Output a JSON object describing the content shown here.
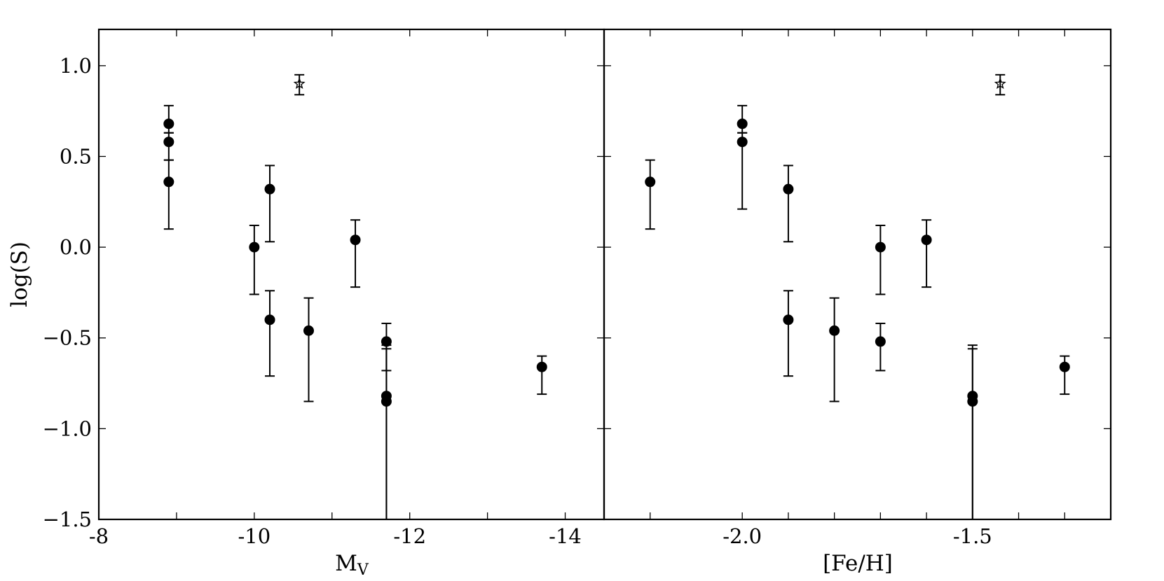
{
  "chart_data": [
    {
      "type": "scatter",
      "panel": "left",
      "xlabel": "M",
      "xlabel_sub": "V",
      "ylabel": "log(S)",
      "xlim": [
        -8,
        -14.5
      ],
      "ylim": [
        -1.5,
        1.2
      ],
      "xticks": [
        -8,
        -10,
        -12,
        -14
      ],
      "xtick_labels": [
        "-8",
        "-10",
        "-12",
        "-14"
      ],
      "xminor": [
        -9,
        -11,
        -13
      ],
      "yticks": [
        1.0,
        0.5,
        0.0,
        -0.5,
        -1.0,
        -1.5
      ],
      "ytick_labels": [
        "1.0",
        "0.5",
        "0.0",
        "−0.5",
        "−1.0",
        "−1.5"
      ],
      "points": [
        {
          "x": -8.9,
          "y": 0.68,
          "lo": 0.63,
          "hi": 0.78,
          "marker": "circle"
        },
        {
          "x": -8.9,
          "y": 0.58,
          "lo": 0.48,
          "hi": 0.63,
          "marker": "circle"
        },
        {
          "x": -8.9,
          "y": 0.36,
          "lo": 0.1,
          "hi": 0.48,
          "marker": "circle"
        },
        {
          "x": -10.0,
          "y": 0.0,
          "lo": -0.26,
          "hi": 0.12,
          "marker": "circle"
        },
        {
          "x": -10.2,
          "y": 0.32,
          "lo": 0.03,
          "hi": 0.45,
          "marker": "circle"
        },
        {
          "x": -10.2,
          "y": -0.4,
          "lo": -0.71,
          "hi": -0.24,
          "marker": "circle"
        },
        {
          "x": -10.7,
          "y": -0.46,
          "lo": -0.85,
          "hi": -0.28,
          "marker": "circle"
        },
        {
          "x": -11.3,
          "y": 0.04,
          "lo": -0.22,
          "hi": 0.15,
          "marker": "circle"
        },
        {
          "x": -11.7,
          "y": -0.52,
          "lo": -0.68,
          "hi": -0.42,
          "marker": "circle"
        },
        {
          "x": -11.7,
          "y": -0.82,
          "lo": -1.5,
          "hi": -0.56,
          "marker": "circle"
        },
        {
          "x": -11.7,
          "y": -0.85,
          "lo": -1.5,
          "hi": -0.54,
          "marker": "circle"
        },
        {
          "x": -13.7,
          "y": -0.66,
          "lo": -0.81,
          "hi": -0.6,
          "marker": "circle"
        },
        {
          "x": -10.58,
          "y": 0.9,
          "lo": 0.84,
          "hi": 0.95,
          "marker": "star"
        }
      ]
    },
    {
      "type": "scatter",
      "panel": "right",
      "xlabel": "[Fe/H]",
      "ylim": [
        -1.5,
        1.2
      ],
      "xlim": [
        -2.3,
        -1.2
      ],
      "xticks": [
        -2.0,
        -1.5
      ],
      "xtick_labels": [
        "-2.0",
        "-1.5"
      ],
      "xminor": [
        -2.2,
        -1.9,
        -1.8,
        -1.7,
        -1.6,
        -1.4,
        -1.3
      ],
      "yticks": [
        1.0,
        0.5,
        0.0,
        -0.5,
        -1.0
      ],
      "points": [
        {
          "x": -2.2,
          "y": 0.36,
          "lo": 0.1,
          "hi": 0.48,
          "marker": "circle"
        },
        {
          "x": -2.0,
          "y": 0.68,
          "lo": 0.63,
          "hi": 0.78,
          "marker": "circle"
        },
        {
          "x": -2.0,
          "y": 0.58,
          "lo": 0.21,
          "hi": 0.63,
          "marker": "circle"
        },
        {
          "x": -1.9,
          "y": 0.32,
          "lo": 0.03,
          "hi": 0.45,
          "marker": "circle"
        },
        {
          "x": -1.9,
          "y": -0.4,
          "lo": -0.71,
          "hi": -0.24,
          "marker": "circle"
        },
        {
          "x": -1.8,
          "y": -0.46,
          "lo": -0.85,
          "hi": -0.28,
          "marker": "circle"
        },
        {
          "x": -1.7,
          "y": 0.0,
          "lo": -0.26,
          "hi": 0.12,
          "marker": "circle"
        },
        {
          "x": -1.7,
          "y": -0.52,
          "lo": -0.68,
          "hi": -0.42,
          "marker": "circle"
        },
        {
          "x": -1.6,
          "y": 0.04,
          "lo": -0.22,
          "hi": 0.15,
          "marker": "circle"
        },
        {
          "x": -1.5,
          "y": -0.82,
          "lo": -1.5,
          "hi": -0.56,
          "marker": "circle"
        },
        {
          "x": -1.5,
          "y": -0.85,
          "lo": -1.5,
          "hi": -0.54,
          "marker": "circle"
        },
        {
          "x": -1.3,
          "y": -0.66,
          "lo": -0.81,
          "hi": -0.6,
          "marker": "circle"
        },
        {
          "x": -1.44,
          "y": 0.9,
          "lo": 0.84,
          "hi": 0.95,
          "marker": "star"
        }
      ]
    }
  ]
}
